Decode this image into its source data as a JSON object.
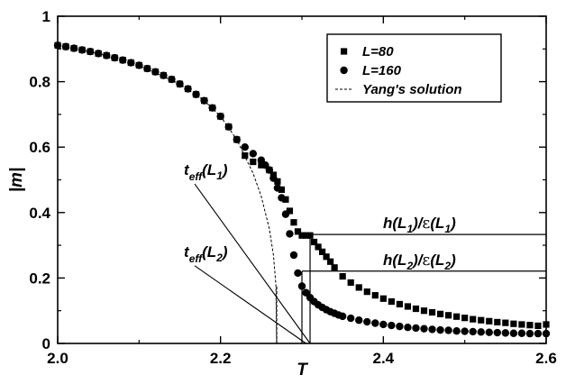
{
  "chart_data": {
    "type": "scatter",
    "xlabel": "T",
    "ylabel": "|m|",
    "xlim": [
      2.0,
      2.6
    ],
    "ylim": [
      0,
      1
    ],
    "x_ticks": [
      "2.0",
      "2.2",
      "2.4",
      "2.6"
    ],
    "y_ticks": [
      "0",
      "0.2",
      "0.4",
      "0.6",
      "0.8",
      "1"
    ],
    "grid": false,
    "legend_position": "top-right",
    "series": [
      {
        "name": "L=80",
        "marker": "square",
        "color": "#000000",
        "x": [
          2.0,
          2.01,
          2.02,
          2.03,
          2.04,
          2.05,
          2.06,
          2.07,
          2.08,
          2.09,
          2.1,
          2.11,
          2.12,
          2.13,
          2.14,
          2.15,
          2.16,
          2.17,
          2.18,
          2.19,
          2.2,
          2.21,
          2.22,
          2.23,
          2.24,
          2.25,
          2.26,
          2.265,
          2.27,
          2.275,
          2.28,
          2.285,
          2.29,
          2.295,
          2.3,
          2.305,
          2.31,
          2.315,
          2.32,
          2.325,
          2.33,
          2.335,
          2.34,
          2.35,
          2.36,
          2.37,
          2.38,
          2.39,
          2.4,
          2.41,
          2.42,
          2.43,
          2.44,
          2.45,
          2.46,
          2.47,
          2.48,
          2.49,
          2.5,
          2.51,
          2.52,
          2.53,
          2.54,
          2.55,
          2.56,
          2.57,
          2.58,
          2.59,
          2.6
        ],
        "y": [
          0.911,
          0.907,
          0.902,
          0.897,
          0.892,
          0.886,
          0.88,
          0.873,
          0.866,
          0.858,
          0.85,
          0.84,
          0.83,
          0.819,
          0.807,
          0.793,
          0.778,
          0.761,
          0.742,
          0.72,
          0.694,
          0.662,
          0.623,
          0.574,
          0.555,
          0.545,
          0.53,
          0.515,
          0.495,
          0.47,
          0.44,
          0.405,
          0.37,
          0.342,
          0.33,
          0.33,
          0.33,
          0.31,
          0.295,
          0.28,
          0.265,
          0.25,
          0.232,
          0.205,
          0.186,
          0.171,
          0.158,
          0.147,
          0.137,
          0.128,
          0.12,
          0.113,
          0.106,
          0.1,
          0.095,
          0.09,
          0.086,
          0.082,
          0.078,
          0.074,
          0.071,
          0.068,
          0.065,
          0.063,
          0.06,
          0.058,
          0.056,
          0.054,
          0.058
        ]
      },
      {
        "name": "L=160",
        "marker": "circle",
        "color": "#000000",
        "x": [
          2.0,
          2.01,
          2.02,
          2.03,
          2.04,
          2.05,
          2.06,
          2.07,
          2.08,
          2.09,
          2.1,
          2.11,
          2.12,
          2.13,
          2.14,
          2.15,
          2.16,
          2.17,
          2.18,
          2.19,
          2.2,
          2.21,
          2.22,
          2.23,
          2.24,
          2.25,
          2.255,
          2.26,
          2.265,
          2.27,
          2.275,
          2.28,
          2.285,
          2.29,
          2.295,
          2.3,
          2.305,
          2.31,
          2.315,
          2.32,
          2.325,
          2.33,
          2.335,
          2.34,
          2.345,
          2.35,
          2.36,
          2.37,
          2.38,
          2.39,
          2.4,
          2.41,
          2.42,
          2.43,
          2.44,
          2.45,
          2.46,
          2.47,
          2.48,
          2.49,
          2.5,
          2.51,
          2.52,
          2.53,
          2.54,
          2.55,
          2.56,
          2.57,
          2.58,
          2.59,
          2.6
        ],
        "y": [
          0.911,
          0.907,
          0.902,
          0.897,
          0.892,
          0.886,
          0.88,
          0.873,
          0.866,
          0.858,
          0.85,
          0.84,
          0.83,
          0.819,
          0.807,
          0.793,
          0.778,
          0.761,
          0.742,
          0.72,
          0.694,
          0.662,
          0.623,
          0.6,
          0.58,
          0.56,
          0.545,
          0.53,
          0.505,
          0.475,
          0.445,
          0.395,
          0.335,
          0.27,
          0.215,
          0.175,
          0.155,
          0.14,
          0.128,
          0.118,
          0.11,
          0.103,
          0.097,
          0.092,
          0.087,
          0.083,
          0.077,
          0.071,
          0.066,
          0.062,
          0.058,
          0.055,
          0.052,
          0.049,
          0.047,
          0.045,
          0.043,
          0.041,
          0.04,
          0.038,
          0.037,
          0.036,
          0.035,
          0.034,
          0.033,
          0.032,
          0.031,
          0.031,
          0.03,
          0.03,
          0.03
        ]
      },
      {
        "name": "Yang's solution",
        "marker": "dashed-line",
        "color": "#000000",
        "x": [
          2.0,
          2.05,
          2.1,
          2.15,
          2.18,
          2.2,
          2.22,
          2.24,
          2.25,
          2.26,
          2.265,
          2.268,
          2.269
        ],
        "y": [
          0.911,
          0.886,
          0.85,
          0.793,
          0.742,
          0.694,
          0.623,
          0.52,
          0.45,
          0.35,
          0.27,
          0.18,
          0.0
        ]
      }
    ],
    "annotations": {
      "teff1": {
        "base": "t",
        "sub": "eff",
        "paren": "(L",
        "paren_sub": "1",
        "close": ")",
        "tip_x": 2.31,
        "tip_y": 0.0,
        "label_x": 2.155,
        "label_y": 0.515
      },
      "teff2": {
        "base": "t",
        "sub": "eff",
        "paren": "(L",
        "paren_sub": "2",
        "close": ")",
        "tip_x": 2.305,
        "tip_y": 0.0,
        "label_x": 2.155,
        "label_y": 0.265
      },
      "h1": {
        "text1": "h(L",
        "sub1": "1",
        "text2": ")/",
        "eps": "ε",
        "text3": "(L",
        "sub2": "1",
        "text4": ")",
        "y": 0.333,
        "x_start": 2.31
      },
      "h2": {
        "text1": "h(L",
        "sub1": "2",
        "text2": ")/",
        "eps": "ε",
        "text3": "(L",
        "sub2": "2",
        "text4": ")",
        "y": 0.221,
        "x_start": 2.3
      },
      "verticals": [
        {
          "x": 2.269,
          "y_top": 0.178,
          "style": "dashed"
        },
        {
          "x": 2.3,
          "y_top": 0.22,
          "style": "solid"
        },
        {
          "x": 2.31,
          "y_top": 0.333,
          "style": "solid"
        }
      ]
    }
  }
}
